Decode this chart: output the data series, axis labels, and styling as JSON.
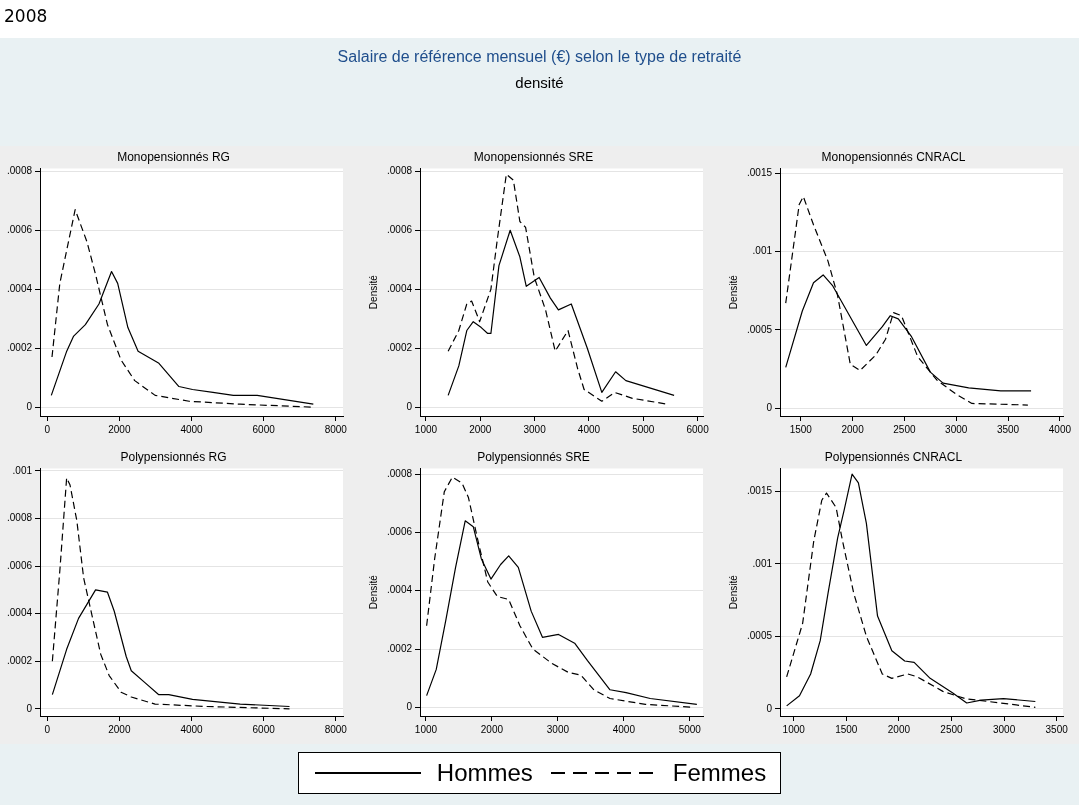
{
  "chart_data": [
    {
      "type": "line",
      "title": "Monopensionnés RG",
      "annotations": [
        "2008",
        "Salaire de référence mensuel (€) selon le type de retraité",
        "densité"
      ],
      "legend": "bottom",
      "grid": "y",
      "xlim": [
        -200,
        8200
      ],
      "ylim": [
        -3e-05,
        0.00081
      ],
      "xticks": [
        0,
        2000,
        4000,
        6000,
        8000
      ],
      "yticks": [
        {
          "value": 0,
          "label": "0"
        },
        {
          "value": 0.0002,
          "label": ".0002"
        },
        {
          "value": 0.0004,
          "label": ".0004"
        },
        {
          "value": 0.0006,
          "label": ".0006"
        },
        {
          "value": 0.0008,
          "label": ".0008"
        }
      ],
      "series": [
        {
          "name": "Hommes",
          "color": "#000000",
          "line_style": "solid",
          "x": [
            113,
            540,
            726,
            1057,
            1434,
            1783,
            1953,
            2236,
            2519,
            3085,
            3651,
            4028,
            4594,
            5160,
            5821,
            7377
          ],
          "values": [
            4e-05,
            0.00019,
            0.00024,
            0.00028,
            0.00035,
            0.00046,
            0.00042,
            0.00027,
            0.00019,
            0.00015,
            7e-05,
            6e-05,
            5e-05,
            4e-05,
            4e-05,
            1e-05
          ]
        },
        {
          "name": "Femmes",
          "color": "#000000",
          "line_style": "dashed",
          "x": [
            132,
            349,
            774,
            1104,
            1340,
            1670,
            2047,
            2425,
            2991,
            3934,
            5349,
            7377
          ],
          "values": [
            0.00017,
            0.00042,
            0.00067,
            0.00056,
            0.00045,
            0.00028,
            0.00016,
            9e-05,
            4e-05,
            2e-05,
            1e-05,
            0
          ]
        }
      ]
    },
    {
      "type": "line",
      "title": "Monopensionnés SRE",
      "ylabel": "Densité",
      "grid": "y",
      "xlim": [
        890,
        6100
      ],
      "ylim": [
        -3e-05,
        0.00081
      ],
      "xticks": [
        1000,
        2000,
        3000,
        4000,
        5000,
        6000
      ],
      "yticks": [
        {
          "value": 0,
          "label": "0"
        },
        {
          "value": 0.0002,
          "label": ".0002"
        },
        {
          "value": 0.0004,
          "label": ".0004"
        },
        {
          "value": 0.0006,
          "label": ".0006"
        },
        {
          "value": 0.0008,
          "label": ".0008"
        }
      ],
      "series": [
        {
          "color": "#000000",
          "line_style": "solid",
          "x": [
            1408,
            1604,
            1751,
            1870,
            2018,
            2136,
            2195,
            2343,
            2550,
            2728,
            2846,
            3083,
            3290,
            3438,
            3675,
            3970,
            4237,
            4491,
            4680,
            5568
          ],
          "values": [
            4e-05,
            0.00014,
            0.00026,
            0.00029,
            0.00027,
            0.00025,
            0.00025,
            0.00048,
            0.0006,
            0.00051,
            0.00041,
            0.00044,
            0.00037,
            0.00033,
            0.00035,
            0.0002,
            5e-05,
            0.00012,
            9e-05,
            4e-05
          ]
        },
        {
          "color": "#000000",
          "line_style": "dashed",
          "x": [
            1408,
            1604,
            1751,
            1840,
            1988,
            2195,
            2314,
            2479,
            2609,
            2728,
            2834,
            2994,
            3201,
            3379,
            3615,
            3793,
            3911,
            4237,
            4473,
            4799,
            5450
          ],
          "values": [
            0.00019,
            0.00026,
            0.00035,
            0.00036,
            0.00029,
            0.0004,
            0.00057,
            0.00079,
            0.00077,
            0.00063,
            0.00061,
            0.00044,
            0.00033,
            0.00019,
            0.00026,
            0.00013,
            6e-05,
            2e-05,
            5e-05,
            3e-05,
            1e-05
          ]
        }
      ]
    },
    {
      "type": "line",
      "title": "Monopensionnés CNRACL",
      "ylabel": "Densité",
      "grid": "y",
      "xlim": [
        1300,
        4030
      ],
      "ylim": [
        -5e-05,
        0.00153
      ],
      "xticks": [
        1500,
        2000,
        2500,
        3000,
        3500,
        4000
      ],
      "yticks": [
        {
          "value": 0,
          "label": "0"
        },
        {
          "value": 0.0005,
          "label": ".0005"
        },
        {
          "value": 0.001,
          "label": ".001"
        },
        {
          "value": 0.0015,
          "label": ".0015"
        }
      ],
      "series": [
        {
          "color": "#000000",
          "line_style": "solid",
          "x": [
            1355,
            1515,
            1623,
            1716,
            1809,
            2133,
            2287,
            2364,
            2441,
            2565,
            2750,
            2873,
            3120,
            3429,
            3722
          ],
          "values": [
            0.00026,
            0.00062,
            0.0008,
            0.00085,
            0.00078,
            0.0004,
            0.00052,
            0.00059,
            0.00057,
            0.00046,
            0.00023,
            0.00016,
            0.00013,
            0.00011,
            0.00011
          ]
        },
        {
          "color": "#000000",
          "line_style": "dashed",
          "x": [
            1355,
            1423,
            1485,
            1525,
            1623,
            1762,
            1855,
            1978,
            2071,
            2225,
            2318,
            2395,
            2472,
            2627,
            2812,
            2997,
            3151,
            3691
          ],
          "values": [
            0.00067,
            0.001,
            0.0013,
            0.00135,
            0.00117,
            0.00094,
            0.00072,
            0.00028,
            0.00024,
            0.00034,
            0.00044,
            0.00061,
            0.00059,
            0.00033,
            0.00018,
            9e-05,
            3e-05,
            2e-05
          ]
        }
      ]
    },
    {
      "type": "line",
      "title": "Polypensionnés RG",
      "grid": "y",
      "xlim": [
        -200,
        8200
      ],
      "ylim": [
        -3e-05,
        0.00101
      ],
      "xticks": [
        0,
        2000,
        4000,
        6000,
        8000
      ],
      "yticks": [
        {
          "value": 0,
          "label": "0"
        },
        {
          "value": 0.0002,
          "label": ".0002"
        },
        {
          "value": 0.0004,
          "label": ".0004"
        },
        {
          "value": 0.0006,
          "label": ".0006"
        },
        {
          "value": 0.0008,
          "label": ".0008"
        },
        {
          "value": 0.001,
          "label": ".001"
        }
      ],
      "series": [
        {
          "color": "#000000",
          "line_style": "solid",
          "x": [
            142,
            538,
            868,
            1340,
            1670,
            1858,
            2189,
            2330,
            2708,
            3085,
            3368,
            4028,
            5349,
            6717
          ],
          "values": [
            6e-05,
            0.00025,
            0.00038,
            0.0005,
            0.00049,
            0.00041,
            0.00022,
            0.00016,
            0.00011,
            6e-05,
            6e-05,
            4e-05,
            2e-05,
            1e-05
          ]
        },
        {
          "color": "#000000",
          "line_style": "dashed",
          "x": [
            142,
            349,
            538,
            632,
            821,
            1009,
            1245,
            1481,
            1717,
            2047,
            2330,
            2991,
            4406,
            6717
          ],
          "values": [
            0.0002,
            0.00058,
            0.00097,
            0.00094,
            0.00079,
            0.00055,
            0.00039,
            0.00023,
            0.00014,
            7e-05,
            5e-05,
            2e-05,
            1e-05,
            0
          ]
        }
      ]
    },
    {
      "type": "line",
      "title": "Polypensionnés SRE",
      "ylabel": "Densité",
      "grid": "y",
      "xlim": [
        910,
        5200
      ],
      "ylim": [
        -3e-05,
        0.00082
      ],
      "xticks": [
        1000,
        2000,
        3000,
        4000,
        5000
      ],
      "yticks": [
        {
          "value": 0,
          "label": "0"
        },
        {
          "value": 0.0002,
          "label": ".0002"
        },
        {
          "value": 0.0004,
          "label": ".0004"
        },
        {
          "value": 0.0006,
          "label": ".0006"
        },
        {
          "value": 0.0008,
          "label": ".0008"
        }
      ],
      "series": [
        {
          "color": "#000000",
          "line_style": "solid",
          "x": [
            1010,
            1156,
            1302,
            1449,
            1595,
            1717,
            1839,
            1985,
            2132,
            2254,
            2400,
            2595,
            2766,
            3010,
            3254,
            3449,
            3790,
            4034,
            4400,
            5107
          ],
          "values": [
            4e-05,
            0.00013,
            0.0003,
            0.00048,
            0.00064,
            0.00062,
            0.00051,
            0.00044,
            0.00049,
            0.00052,
            0.00048,
            0.00033,
            0.00024,
            0.00025,
            0.00022,
            0.00016,
            6e-05,
            5e-05,
            3e-05,
            1e-05
          ]
        },
        {
          "color": "#000000",
          "line_style": "dashed",
          "x": [
            1010,
            1132,
            1278,
            1400,
            1546,
            1644,
            1790,
            1937,
            2083,
            2254,
            2424,
            2620,
            2912,
            3156,
            3351,
            3546,
            3790,
            4327,
            5034
          ],
          "values": [
            0.00028,
            0.00051,
            0.00074,
            0.00079,
            0.00077,
            0.00072,
            0.00057,
            0.00043,
            0.00038,
            0.00037,
            0.00028,
            0.0002,
            0.00015,
            0.00012,
            0.00011,
            6e-05,
            3e-05,
            1e-05,
            0
          ]
        }
      ]
    },
    {
      "type": "line",
      "title": "Polypensionnés CNRACL",
      "ylabel": "Densité",
      "grid": "y",
      "xlim": [
        870,
        3560
      ],
      "ylim": [
        -5e-05,
        0.00166
      ],
      "xticks": [
        1000,
        1500,
        2000,
        2500,
        3000,
        3500
      ],
      "yticks": [
        {
          "value": 0,
          "label": "0"
        },
        {
          "value": 0.0005,
          "label": ".0005"
        },
        {
          "value": 0.001,
          "label": ".001"
        },
        {
          "value": 0.0015,
          "label": ".0015"
        }
      ],
      "series": [
        {
          "color": "#000000",
          "line_style": "solid",
          "x": [
            933,
            1055,
            1161,
            1252,
            1327,
            1418,
            1479,
            1555,
            1615,
            1691,
            1797,
            1933,
            2055,
            2145,
            2297,
            2509,
            2645,
            2782,
            2994,
            3297
          ],
          "values": [
            2e-05,
            9e-05,
            0.00024,
            0.00047,
            0.0008,
            0.00118,
            0.00137,
            0.00162,
            0.00156,
            0.00128,
            0.00064,
            0.0004,
            0.00033,
            0.00032,
            0.00021,
            0.00011,
            4e-05,
            6e-05,
            7e-05,
            5e-05
          ]
        },
        {
          "color": "#000000",
          "line_style": "dashed",
          "x": [
            933,
            1085,
            1191,
            1267,
            1312,
            1403,
            1464,
            1570,
            1691,
            1842,
            1933,
            2085,
            2176,
            2418,
            2630,
            2964,
            3297
          ],
          "values": [
            0.00022,
            0.00059,
            0.00116,
            0.00144,
            0.00149,
            0.00139,
            0.00116,
            0.0008,
            0.0005,
            0.00024,
            0.00021,
            0.00024,
            0.00022,
            0.00012,
            7e-05,
            4e-05,
            1e-05
          ]
        }
      ]
    }
  ]
}
